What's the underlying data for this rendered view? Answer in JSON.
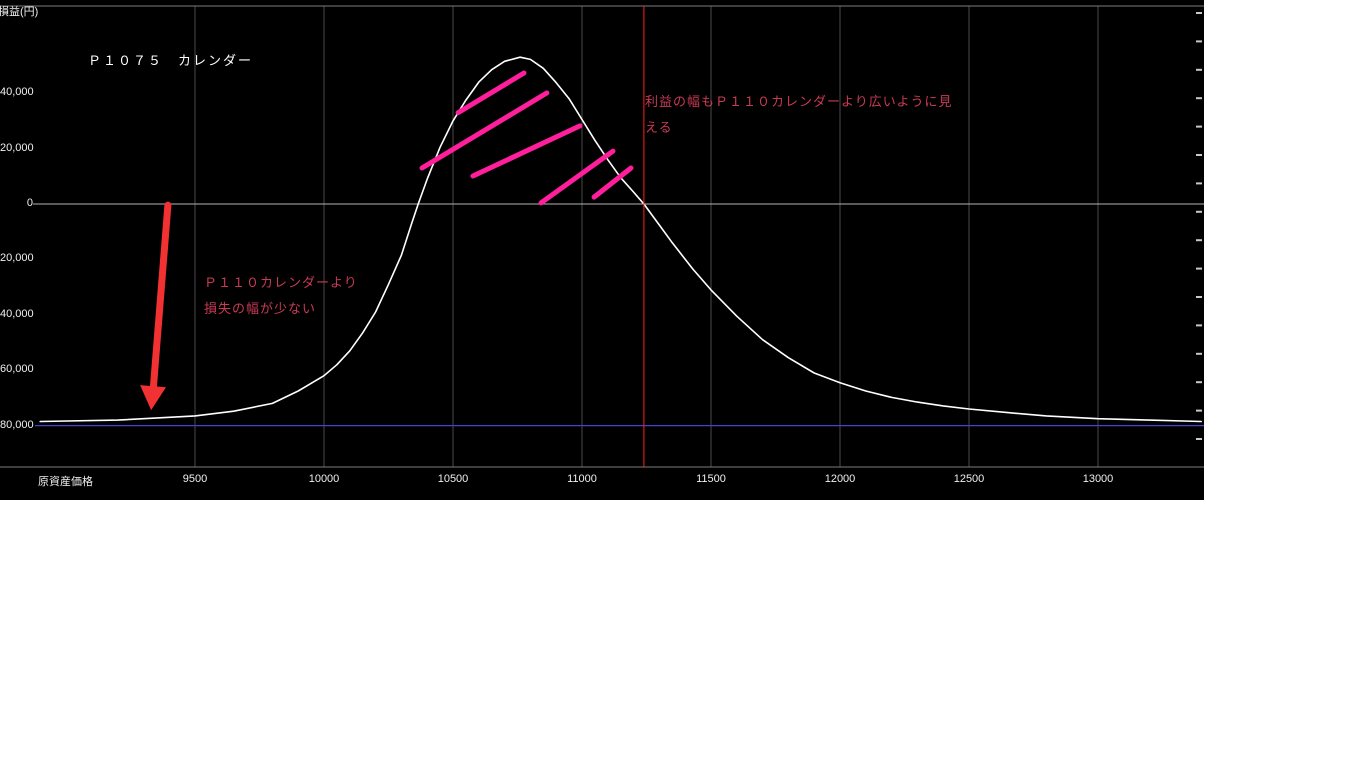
{
  "screen": {
    "background": "#ffffff"
  },
  "chart_data": {
    "type": "line",
    "background": "#000000",
    "title": "Ｐ１０７５　カレンダー",
    "x_axis_title": "原資産価格",
    "y_axis_title": "損益(円)",
    "legend": "none",
    "grid": "vertical-gridlines-and-zero-line",
    "x_ticks": [
      9500,
      10000,
      10500,
      11000,
      11500,
      12000,
      12500,
      13000
    ],
    "y_ticks": [
      {
        "label": "40,000",
        "value": 40000
      },
      {
        "label": "20,000",
        "value": 20000
      },
      {
        "label": "0",
        "value": 0
      },
      {
        "label": "20,000",
        "value": -20000
      },
      {
        "label": "40,000",
        "value": -40000
      },
      {
        "label": "60,000",
        "value": -60000
      },
      {
        "label": "80,000",
        "value": -80000
      }
    ],
    "axis_ranges": {
      "x": [
        8900,
        13420
      ],
      "y": [
        -85000,
        72000
      ]
    },
    "series": [
      {
        "name": "Ｐ１０７５　カレンダー損益",
        "color": "#ffffff",
        "points": [
          [
            8900,
            -78500
          ],
          [
            9200,
            -78000
          ],
          [
            9500,
            -76500
          ],
          [
            9650,
            -74800
          ],
          [
            9800,
            -72000
          ],
          [
            9900,
            -67500
          ],
          [
            10000,
            -62000
          ],
          [
            10050,
            -58000
          ],
          [
            10100,
            -53000
          ],
          [
            10150,
            -46500
          ],
          [
            10200,
            -39000
          ],
          [
            10250,
            -29000
          ],
          [
            10300,
            -18500
          ],
          [
            10340,
            -7000
          ],
          [
            10365,
            0
          ],
          [
            10400,
            9000
          ],
          [
            10450,
            20500
          ],
          [
            10500,
            30000
          ],
          [
            10550,
            37500
          ],
          [
            10600,
            44000
          ],
          [
            10650,
            48500
          ],
          [
            10700,
            51500
          ],
          [
            10760,
            53000
          ],
          [
            10800,
            52200
          ],
          [
            10850,
            49000
          ],
          [
            10900,
            43800
          ],
          [
            10950,
            38000
          ],
          [
            11000,
            30500
          ],
          [
            11050,
            23000
          ],
          [
            11100,
            16000
          ],
          [
            11150,
            9500
          ],
          [
            11200,
            4300
          ],
          [
            11240,
            0
          ],
          [
            11300,
            -7600
          ],
          [
            11350,
            -14000
          ],
          [
            11430,
            -23500
          ],
          [
            11500,
            -31000
          ],
          [
            11600,
            -40500
          ],
          [
            11700,
            -49000
          ],
          [
            11800,
            -55500
          ],
          [
            11900,
            -61000
          ],
          [
            12000,
            -64500
          ],
          [
            12100,
            -67500
          ],
          [
            12200,
            -69800
          ],
          [
            12300,
            -71500
          ],
          [
            12400,
            -72900
          ],
          [
            12500,
            -74000
          ],
          [
            12650,
            -75300
          ],
          [
            12800,
            -76500
          ],
          [
            13000,
            -77500
          ],
          [
            13200,
            -78000
          ],
          [
            13400,
            -78500
          ]
        ]
      }
    ],
    "reference_lines": {
      "zero_line": {
        "value": 0,
        "color": "#b4b4b4"
      },
      "max_loss_line": {
        "value": -80000,
        "color": "#4343d0"
      },
      "vertical_marker": {
        "x": 11240,
        "color": "#ff2020"
      }
    },
    "annotations": {
      "profit_note": {
        "lines": [
          "利益の幅もＰ１１０カレンダーより広いように見",
          "える"
        ],
        "color": "#c83a55"
      },
      "loss_note": {
        "lines": [
          "Ｐ１１０カレンダーより",
          "損失の幅が少ない"
        ],
        "color": "#c83a55"
      },
      "hatch_strokes": {
        "color": "#ff1e9b",
        "segments": [
          [
            10520,
            33000,
            10775,
            47300
          ],
          [
            10380,
            13000,
            10864,
            40100
          ],
          [
            10577,
            10100,
            10992,
            28200
          ],
          [
            10841,
            400,
            11120,
            19100
          ],
          [
            11047,
            2500,
            11190,
            13000
          ]
        ]
      },
      "arrow": {
        "color": "#f23232",
        "from": [
          9395,
          -400
        ],
        "to": [
          9337,
          -68200
        ],
        "tip": [
          9330,
          -74400
        ]
      }
    }
  }
}
